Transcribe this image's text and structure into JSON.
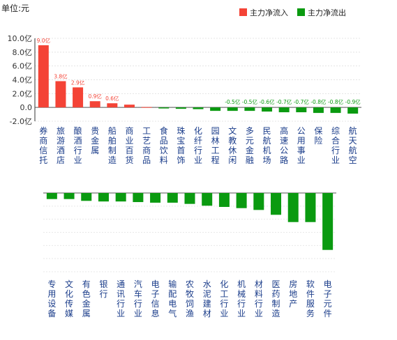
{
  "unit_label": "单位:元",
  "legend": {
    "inflow_label": "主力净流入",
    "outflow_label": "主力净流出",
    "inflow_color": "#f44336",
    "outflow_color": "#0a9a10"
  },
  "chart_data": [
    {
      "type": "bar",
      "title": "",
      "ylim": [
        -2,
        10
      ],
      "yticks": [
        -2,
        0,
        2,
        4,
        6,
        8,
        10
      ],
      "ytick_labels": [
        "-2.0亿",
        "0.0",
        "2.0亿",
        "4.0亿",
        "6.0亿",
        "8.0亿",
        "10.0亿"
      ],
      "grid": true,
      "categories": [
        "券商信托",
        "旅游酒店",
        "酿酒行业",
        "贵金属",
        "船舶制造",
        "商业百货",
        "工艺商品",
        "食品饮料",
        "珠宝首饰",
        "化纤行业",
        "园林工程",
        "文教休闲",
        "多元金融",
        "民航机场",
        "高速公路",
        "公用事业",
        "保险",
        "综合行业",
        "航天航空"
      ],
      "values": [
        9.0,
        3.8,
        2.9,
        0.9,
        0.6,
        0.4,
        0.05,
        -0.15,
        -0.2,
        -0.25,
        -0.5,
        -0.5,
        -0.5,
        -0.6,
        -0.7,
        -0.7,
        -0.8,
        -0.8,
        -0.9
      ],
      "data_labels": [
        "9.0亿",
        "3.8亿",
        "2.9亿",
        "0.9亿",
        "0.6亿",
        "",
        "",
        "",
        "",
        "",
        "",
        "-0.5亿",
        "-0.5亿",
        "-0.6亿",
        "-0.7亿",
        "-0.7亿",
        "-0.8亿",
        "-0.8亿",
        "-0.9亿"
      ]
    },
    {
      "type": "bar",
      "title": "",
      "ylim": [
        -13,
        0
      ],
      "grid": true,
      "categories": [
        "专用设备",
        "文化传媒",
        "有色金属",
        "银行",
        "通讯行业",
        "汽车行业",
        "电子信息",
        "输配电气",
        "农牧饲渔",
        "水泥建材",
        "化工行业",
        "机械行业",
        "材料行业",
        "医药制造",
        "房地产",
        "软件服务",
        "电子元件"
      ],
      "values": [
        -1.0,
        -1.0,
        -1.3,
        -1.4,
        -1.4,
        -1.5,
        -1.6,
        -1.6,
        -1.8,
        -2.1,
        -2.3,
        -2.5,
        -2.8,
        -3.6,
        -4.8,
        -4.8,
        -9.4
      ],
      "data_labels": []
    }
  ]
}
